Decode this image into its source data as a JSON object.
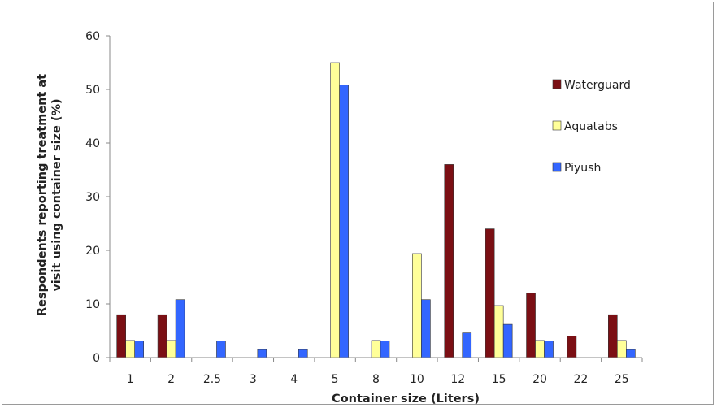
{
  "chart_data": {
    "type": "bar",
    "title": "",
    "xlabel": "Container size (Liters)",
    "ylabel_lines": [
      "Respondents reporting treatment at",
      "visit using container size (%)"
    ],
    "ylim": [
      0,
      60
    ],
    "yticks": [
      0,
      10,
      20,
      30,
      40,
      50,
      60
    ],
    "categories": [
      "1",
      "2",
      "2.5",
      "3",
      "4",
      "5",
      "8",
      "10",
      "12",
      "15",
      "20",
      "22",
      "25"
    ],
    "series": [
      {
        "name": "Waterguard",
        "color": "#7b0f14",
        "values": [
          8,
          8,
          0,
          0,
          0,
          0,
          0,
          0,
          36,
          24,
          12,
          4,
          8
        ]
      },
      {
        "name": "Aquatabs",
        "color": "#ffff99",
        "values": [
          3.2,
          3.2,
          0,
          0,
          0,
          55,
          3.2,
          19.4,
          0,
          9.7,
          3.2,
          0,
          3.2
        ]
      },
      {
        "name": "Piyush",
        "color": "#3366ff",
        "values": [
          3.1,
          10.8,
          3.1,
          1.5,
          1.5,
          50.8,
          3.1,
          10.8,
          4.6,
          6.2,
          3.1,
          0,
          1.5
        ]
      }
    ],
    "grid": false,
    "legend_position": "right"
  }
}
